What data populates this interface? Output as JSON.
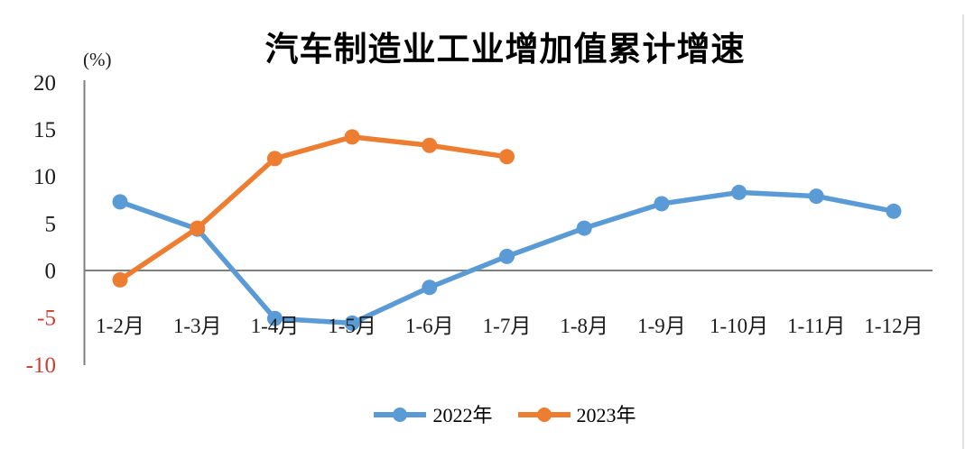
{
  "chart": {
    "title": "汽车制造业工业增加值累计增速",
    "unit_label": "(%)"
  },
  "chart_data": {
    "type": "line",
    "title": "汽车制造业工业增加值累计增速",
    "unit": "%",
    "categories": [
      "1-2月",
      "1-3月",
      "1-4月",
      "1-5月",
      "1-6月",
      "1-7月",
      "1-8月",
      "1-9月",
      "1-10月",
      "1-11月",
      "1-12月"
    ],
    "series": [
      {
        "name": "2022年",
        "color": "#5B9BD5",
        "values": [
          7.3,
          4.4,
          -5.1,
          -5.6,
          -1.8,
          1.5,
          4.5,
          7.1,
          8.3,
          7.9,
          6.3
        ]
      },
      {
        "name": "2023年",
        "color": "#ED7D31",
        "values": [
          -1.0,
          4.5,
          11.9,
          14.2,
          13.3,
          12.1
        ]
      }
    ],
    "y_axis": {
      "ticks": [
        20,
        15,
        10,
        5,
        0,
        -5,
        -10
      ],
      "min": -10,
      "max": 20,
      "tick_color": "#1a1a1a",
      "negative_tick_color": "#d03b32"
    },
    "x_axis": {
      "label_color": "#1a1a1a"
    },
    "gridlines": "zero-line-only",
    "axis_color": "#7f7f7f",
    "legend_position": "bottom",
    "background": "#ffffff"
  }
}
